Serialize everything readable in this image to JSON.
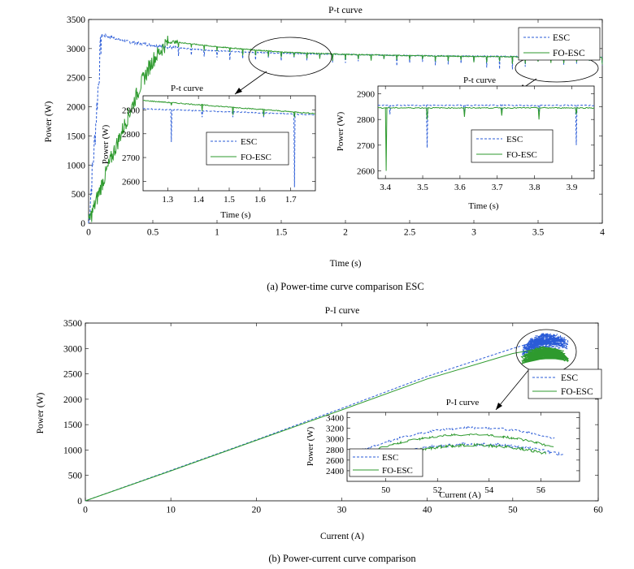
{
  "chart_data": [
    {
      "type": "line",
      "title": "P-t curve",
      "xlabel": "Time (s)",
      "ylabel": "Power (W)",
      "xlim": [
        0,
        4
      ],
      "ylim": [
        0,
        3500
      ],
      "xticks": [
        "0",
        "0.5",
        "1",
        "1.5",
        "2",
        "2.5",
        "3",
        "3.5",
        "4"
      ],
      "yticks": [
        "0",
        "500",
        "1000",
        "1500",
        "2000",
        "2500",
        "3000",
        "3500"
      ],
      "legend_position": "top-right",
      "series": [
        {
          "name": "ESC",
          "color": "#2a5bd7",
          "style": "dashed",
          "x": [
            0,
            0.05,
            0.1,
            0.15,
            0.3,
            0.6,
            1.0,
            1.5,
            2.0,
            2.5,
            3.0,
            3.5,
            4.0
          ],
          "y": [
            0,
            1500,
            3230,
            3210,
            3120,
            3030,
            2960,
            2920,
            2900,
            2880,
            2870,
            2860,
            2855
          ]
        },
        {
          "name": "FO-ESC",
          "color": "#2e9a2e",
          "style": "solid",
          "x": [
            0,
            0.1,
            0.2,
            0.3,
            0.4,
            0.5,
            0.6,
            0.65,
            1.0,
            1.5,
            2.0,
            2.5,
            3.0,
            3.5,
            4.0
          ],
          "y": [
            0,
            650,
            1250,
            1800,
            2350,
            2800,
            3080,
            3120,
            3030,
            2940,
            2900,
            2880,
            2865,
            2855,
            2850
          ]
        }
      ],
      "inset1": {
        "title": "P-t curve",
        "xlabel": "Time (s)",
        "ylabel": "Power (W)",
        "xlim": [
          1.22,
          1.78
        ],
        "ylim": [
          2560,
          2960
        ],
        "xticks": [
          "1.3",
          "1.4",
          "1.5",
          "1.6",
          "1.7"
        ],
        "yticks": [
          "2600",
          "2700",
          "2800",
          "2900"
        ],
        "esc_base": [
          [
            1.22,
            2905
          ],
          [
            1.78,
            2880
          ]
        ],
        "fo_base": [
          [
            1.22,
            2940
          ],
          [
            1.78,
            2885
          ]
        ],
        "esc_dips": [
          [
            1.31,
            2765
          ],
          [
            1.41,
            2870
          ],
          [
            1.51,
            2870
          ],
          [
            1.61,
            2870
          ],
          [
            1.71,
            2575
          ]
        ],
        "fo_dips": [
          [
            1.31,
            2920
          ],
          [
            1.41,
            2895
          ],
          [
            1.51,
            2880
          ],
          [
            1.61,
            2875
          ],
          [
            1.71,
            2870
          ]
        ]
      },
      "inset2": {
        "title": "P-t curve",
        "xlabel": "Time (s)",
        "ylabel": "Power (W)",
        "xlim": [
          3.38,
          3.96
        ],
        "ylim": [
          2570,
          2930
        ],
        "xticks": [
          "3.4",
          "3.5",
          "3.6",
          "3.7",
          "3.8",
          "3.9"
        ],
        "yticks": [
          "2600",
          "2700",
          "2800",
          "2900"
        ],
        "esc_base": [
          [
            3.38,
            2855
          ],
          [
            3.96,
            2855
          ]
        ],
        "fo_base": [
          [
            3.38,
            2845
          ],
          [
            3.96,
            2845
          ]
        ],
        "esc_dips": [
          [
            3.41,
            2820
          ],
          [
            3.51,
            2690
          ],
          [
            3.61,
            2820
          ],
          [
            3.71,
            2825
          ],
          [
            3.81,
            2820
          ],
          [
            3.91,
            2700
          ]
        ],
        "fo_dips": [
          [
            3.4,
            2600
          ],
          [
            3.51,
            2800
          ],
          [
            3.61,
            2810
          ],
          [
            3.71,
            2815
          ],
          [
            3.81,
            2800
          ],
          [
            3.91,
            2820
          ]
        ]
      }
    },
    {
      "type": "line",
      "title": "P-I curve",
      "xlabel": "Current (A)",
      "ylabel": "Power (W)",
      "xlim": [
        0,
        60
      ],
      "ylim": [
        0,
        3500
      ],
      "xticks": [
        "0",
        "10",
        "20",
        "30",
        "40",
        "50",
        "60"
      ],
      "yticks": [
        "0",
        "500",
        "1000",
        "1500",
        "2000",
        "2500",
        "3000",
        "3500"
      ],
      "legend_position": "right",
      "series": [
        {
          "name": "ESC",
          "color": "#2a5bd7",
          "style": "dashed",
          "x": [
            0,
            10,
            20,
            30,
            40,
            50,
            54,
            56
          ],
          "y": [
            0,
            600,
            1200,
            1820,
            2450,
            3000,
            3200,
            3150
          ]
        },
        {
          "name": "FO-ESC",
          "color": "#2e9a2e",
          "style": "solid",
          "x": [
            0,
            10,
            20,
            30,
            40,
            50,
            54,
            56
          ],
          "y": [
            0,
            590,
            1190,
            1790,
            2400,
            2900,
            3020,
            2950
          ]
        }
      ],
      "inset": {
        "title": "P-I curve",
        "xlabel": "Current (A)",
        "ylabel": "Power (W)",
        "xlim": [
          48.5,
          57.5
        ],
        "ylim": [
          2200,
          3500
        ],
        "xticks": [
          "50",
          "52",
          "54",
          "56"
        ],
        "yticks": [
          "2400",
          "2600",
          "2800",
          "3000",
          "3200",
          "3400"
        ]
      }
    }
  ],
  "legend": {
    "esc": "ESC",
    "fo": "FO-ESC"
  },
  "captions": {
    "a": "(a) Power-time curve comparison ESC",
    "b": "(b) Power-current curve comparison"
  }
}
